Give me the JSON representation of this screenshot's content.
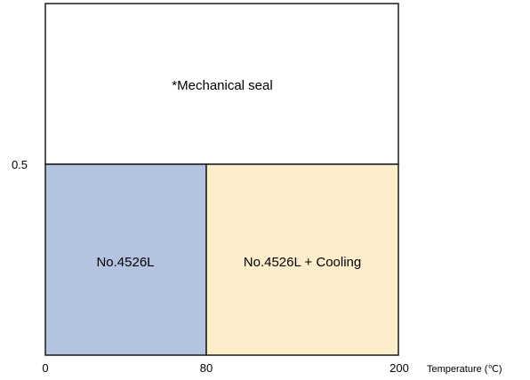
{
  "diagram": {
    "x_axis": {
      "ticks": [
        "0",
        "80",
        "200"
      ],
      "title": "Temperature (℃)"
    },
    "y_axis": {
      "ticks": [
        "0.5"
      ]
    },
    "regions": [
      {
        "label": "*Mechanical seal",
        "fill": "#ffffff"
      },
      {
        "label": "No.4526L",
        "fill": "#b3c3e0"
      },
      {
        "label": "No.4526L + Cooling",
        "fill": "#fdeecb"
      }
    ],
    "border_color": "#1a1a1a"
  }
}
